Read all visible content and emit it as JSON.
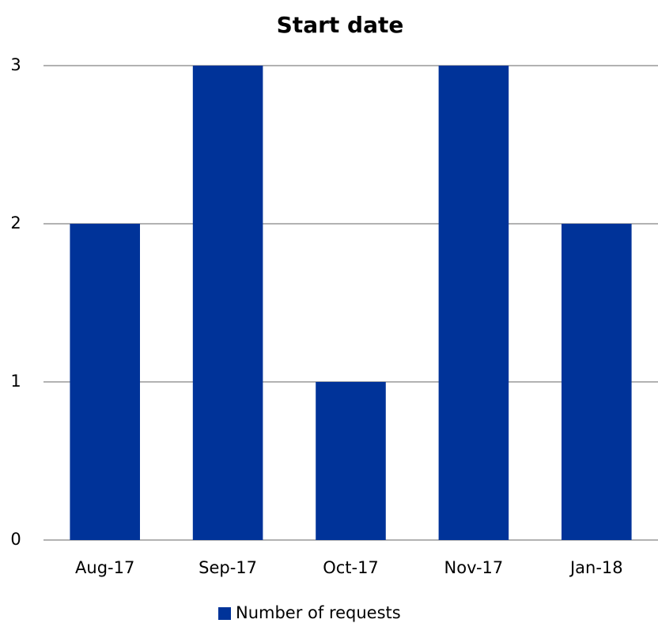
{
  "chart_data": {
    "type": "bar",
    "title": "Start date",
    "categories": [
      "Aug-17",
      "Sep-17",
      "Oct-17",
      "Nov-17",
      "Jan-18"
    ],
    "series": [
      {
        "name": "Number of requests",
        "color": "#003399",
        "values": [
          2,
          3,
          1,
          3,
          2
        ]
      }
    ],
    "ylim": [
      0,
      3
    ],
    "yticks": [
      0,
      1,
      2,
      3
    ],
    "grid": true,
    "legend": "bottom"
  }
}
